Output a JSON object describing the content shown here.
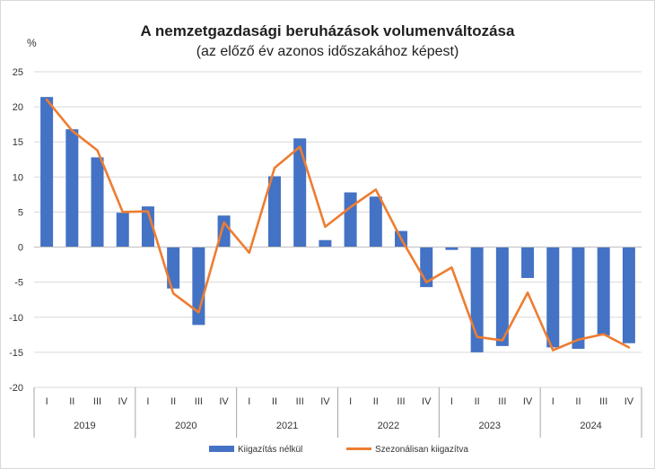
{
  "chart_data": {
    "type": "bar",
    "title": "A nemzetgazdasági beruházások volumenváltozása",
    "subtitle": "(az előző év azonos időszakához képest)",
    "ylabel": "%",
    "ylim": [
      -20,
      25
    ],
    "yticks": [
      25,
      20,
      15,
      10,
      5,
      0,
      -5,
      -10,
      -15,
      -20
    ],
    "quarters": [
      "I",
      "II",
      "III",
      "IV",
      "I",
      "II",
      "III",
      "IV",
      "I",
      "II",
      "III",
      "IV",
      "I",
      "II",
      "III",
      "IV",
      "I",
      "II",
      "III",
      "IV",
      "I",
      "II",
      "III",
      "IV"
    ],
    "years": [
      "2019",
      "2020",
      "2021",
      "2022",
      "2023",
      "2024"
    ],
    "legend_position": "bottom",
    "grid": true,
    "series": [
      {
        "name": "Kiigazítás nélkül",
        "type": "bar",
        "color": "#4472C4",
        "values": [
          21.4,
          16.8,
          12.8,
          4.9,
          5.8,
          -5.9,
          -11.1,
          4.5,
          0.0,
          10.1,
          15.5,
          1.0,
          7.8,
          7.2,
          2.3,
          -5.7,
          -0.4,
          -15.0,
          -14.1,
          -4.4,
          -14.3,
          -14.5,
          -12.6,
          -13.7
        ]
      },
      {
        "name": "Szezonálisan kiigazítva",
        "type": "line",
        "color": "#ED7D31",
        "values": [
          21.0,
          16.6,
          13.8,
          5.0,
          5.1,
          -6.6,
          -9.3,
          3.5,
          -0.8,
          11.3,
          14.3,
          2.9,
          5.7,
          8.2,
          1.2,
          -5.0,
          -2.9,
          -12.8,
          -13.3,
          -6.5,
          -14.7,
          -13.2,
          -12.4,
          -14.3
        ]
      }
    ]
  }
}
